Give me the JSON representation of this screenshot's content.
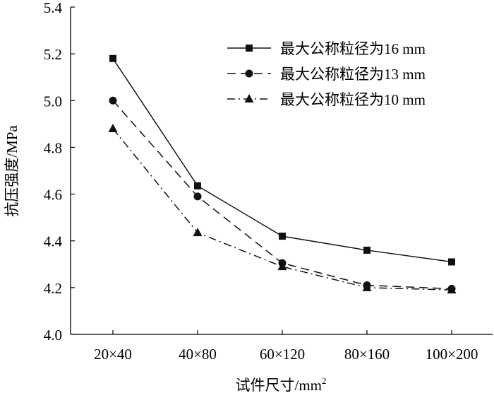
{
  "chart_data": {
    "type": "line",
    "title": "",
    "xlabel": "试件尺寸/mm",
    "xlabel_superscript": "2",
    "ylabel": "抗压强度/MPa",
    "categories": [
      "20×40",
      "40×80",
      "60×120",
      "80×160",
      "100×200"
    ],
    "ylim": [
      4.0,
      5.4
    ],
    "yticks": [
      "4.0",
      "4.2",
      "4.4",
      "4.6",
      "4.8",
      "5.0",
      "5.2",
      "5.4"
    ],
    "grid": false,
    "legend_position": "top-right",
    "series": [
      {
        "name": "最大公称粒径为16 mm",
        "values": [
          5.18,
          4.635,
          4.42,
          4.36,
          4.31
        ],
        "marker": "square",
        "line": "solid",
        "color": "#111111"
      },
      {
        "name": "最大公称粒径为13 mm",
        "values": [
          5.0,
          4.59,
          4.305,
          4.21,
          4.195
        ],
        "marker": "circle",
        "line": "dashed",
        "color": "#111111"
      },
      {
        "name": "最大公称粒径为10 mm",
        "values": [
          4.88,
          4.435,
          4.29,
          4.2,
          4.19
        ],
        "marker": "triangle",
        "line": "dashdot",
        "color": "#111111"
      }
    ]
  }
}
